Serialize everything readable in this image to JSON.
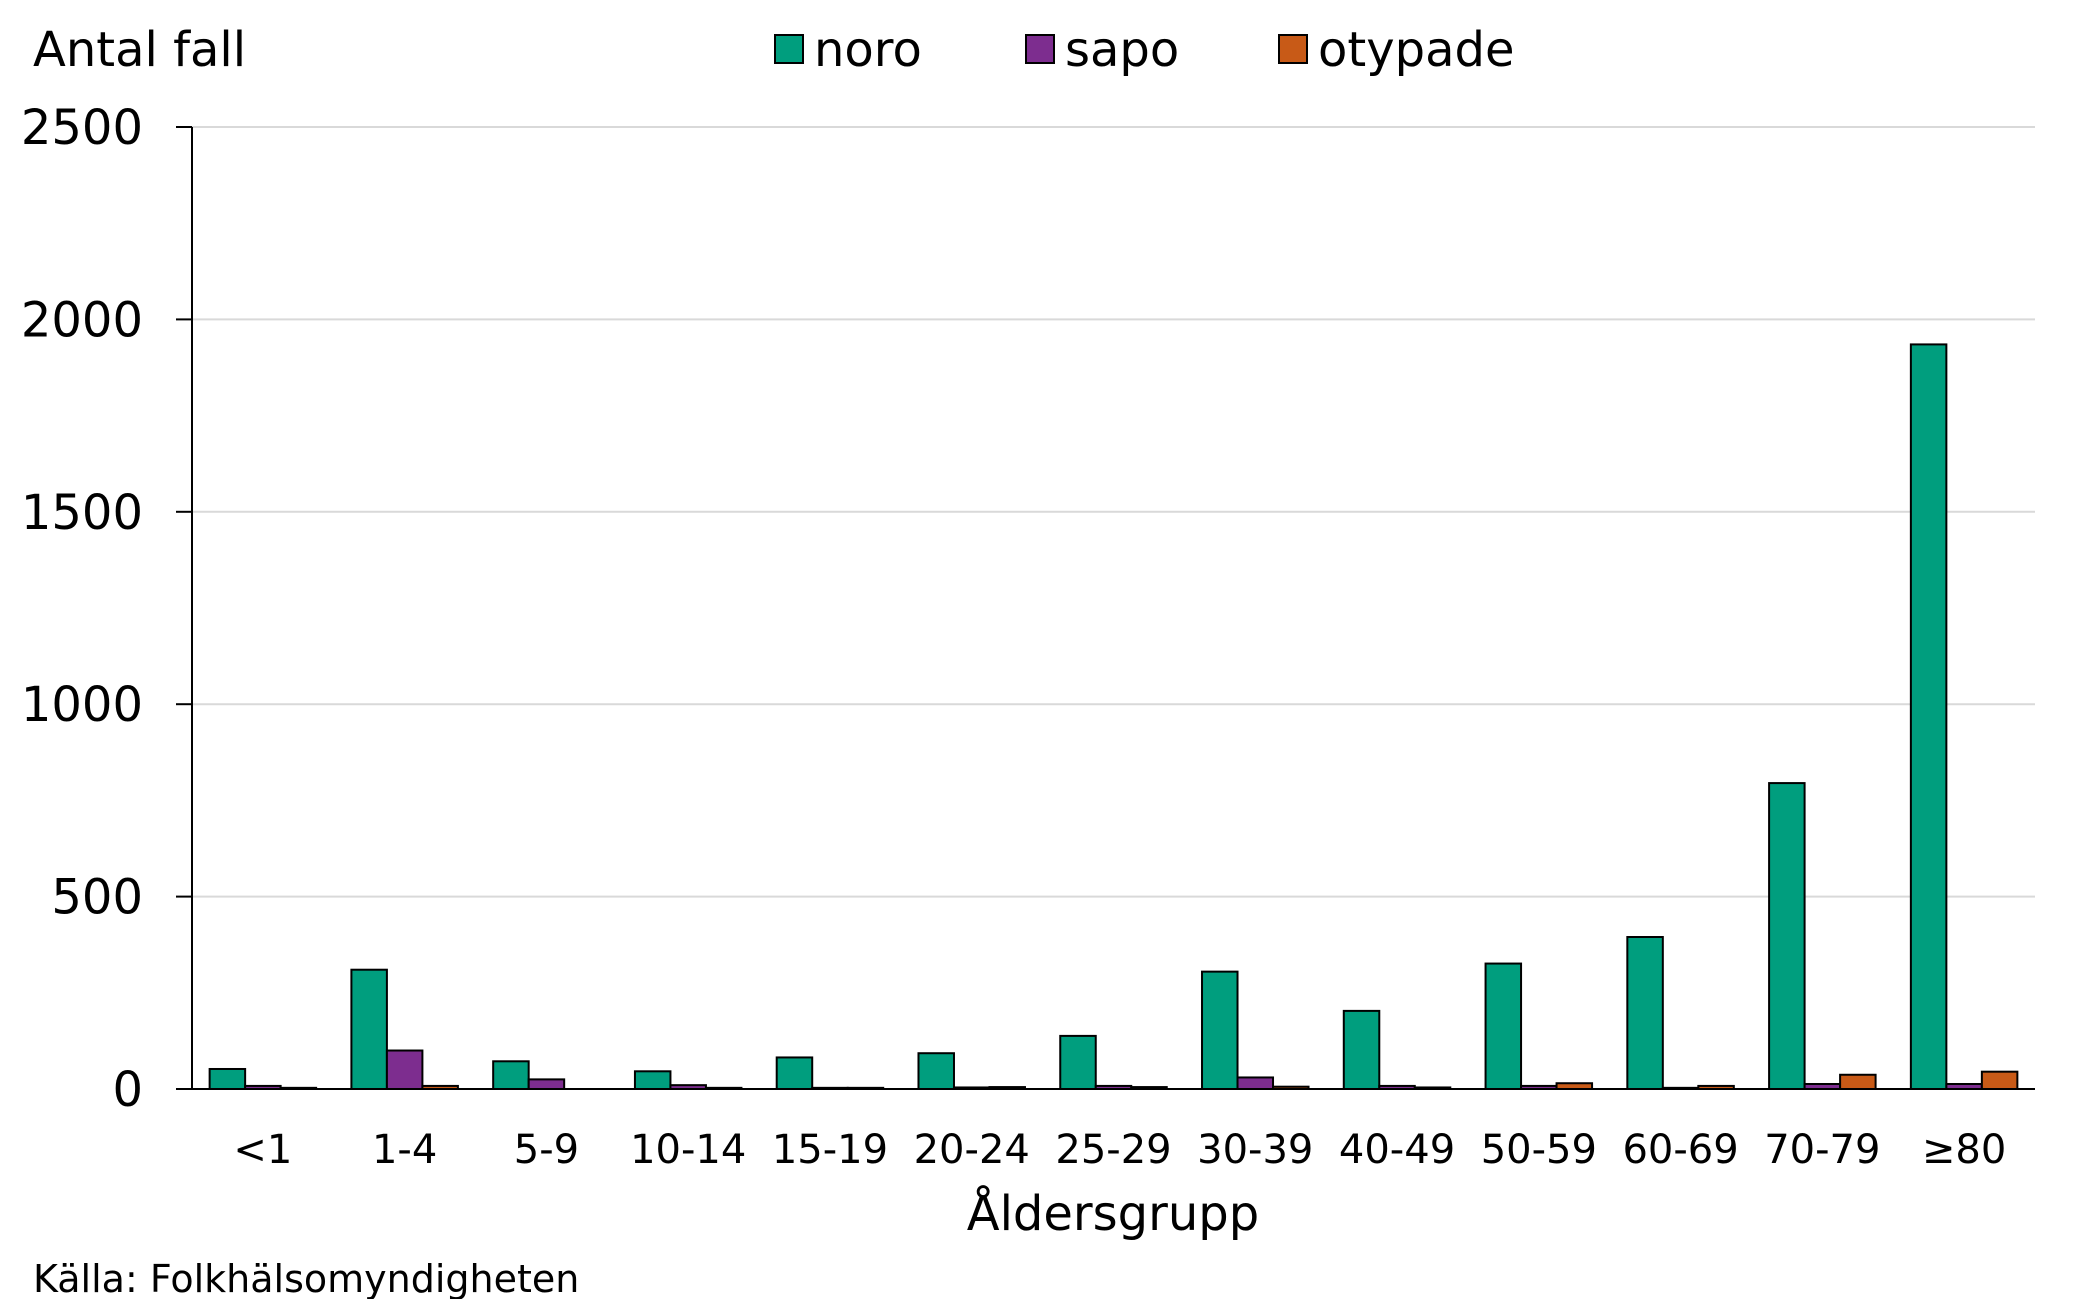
{
  "chart_data": {
    "type": "bar",
    "ylabel": "Antal fall",
    "xlabel": "Åldersgrupp",
    "source": "Källa: Folkhälsomyndigheten",
    "ylim": [
      0,
      2500
    ],
    "yticks": [
      "0",
      "500",
      "1000",
      "1500",
      "2000",
      "2500"
    ],
    "ytick_values": [
      0,
      500,
      1000,
      1500,
      2000,
      2500
    ],
    "grid": true,
    "legend_position": "top-center",
    "categories": [
      "<1",
      "1-4",
      "5-9",
      "10-14",
      "15-19",
      "20-24",
      "25-29",
      "30-39",
      "40-49",
      "50-59",
      "60-69",
      "70-79",
      "≥80"
    ],
    "series": [
      {
        "name": "noro",
        "color": "#009E7E",
        "values": [
          52,
          310,
          72,
          46,
          82,
          93,
          138,
          305,
          203,
          326,
          395,
          795,
          1935
        ]
      },
      {
        "name": "sapo",
        "color": "#7D2D8F",
        "values": [
          8,
          100,
          25,
          10,
          3,
          4,
          8,
          30,
          8,
          8,
          3,
          13,
          13
        ]
      },
      {
        "name": "otypade",
        "color": "#C85A17",
        "values": [
          3,
          8,
          0,
          3,
          3,
          5,
          5,
          6,
          4,
          15,
          8,
          37,
          45
        ]
      }
    ]
  }
}
